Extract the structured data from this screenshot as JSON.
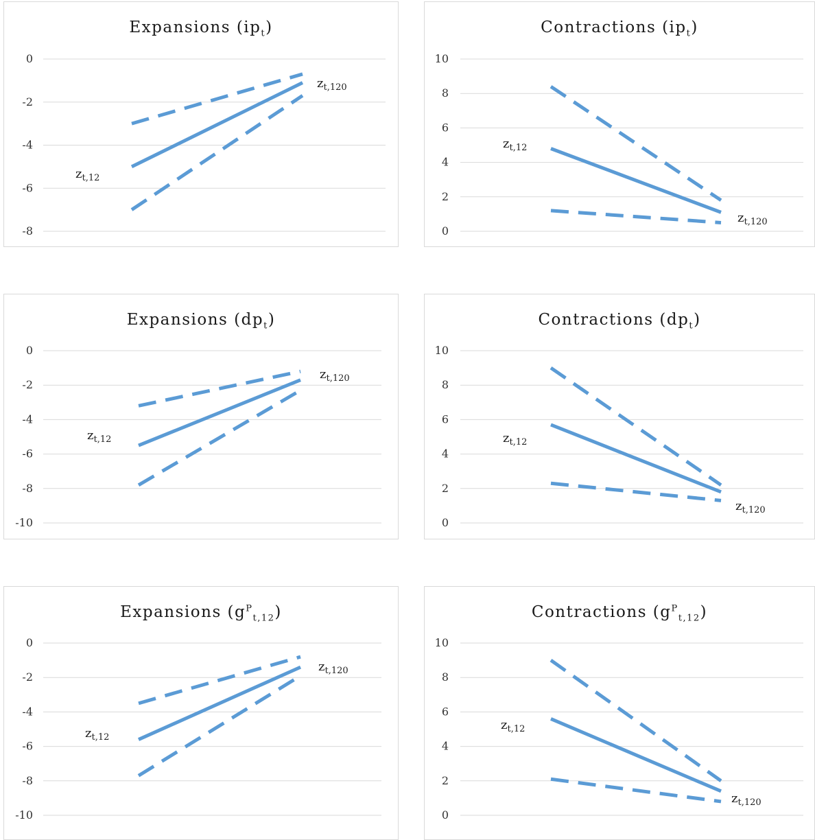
{
  "chart_data": [
    {
      "type": "line",
      "title_main": "Expansions (ip",
      "title_sub": "t",
      "title_sup": "",
      "title_end": ")",
      "ylim": [
        -8,
        0
      ],
      "yticks": [
        "0",
        "-2",
        "-4",
        "-6",
        "-8"
      ],
      "grid": true,
      "x": [
        "z_t,12",
        "z_t,120"
      ],
      "series": [
        {
          "style": "dashed",
          "values": [
            -3.0,
            -0.7
          ]
        },
        {
          "style": "solid",
          "values": [
            -5.0,
            -1.1
          ]
        },
        {
          "style": "dashed",
          "values": [
            -7.0,
            -1.7
          ]
        }
      ],
      "annotations": [
        {
          "text": "z",
          "sub": "t,12"
        },
        {
          "text": "z",
          "sub": "t,120"
        }
      ]
    },
    {
      "type": "line",
      "title_main": "Contractions (ip",
      "title_sub": "t",
      "title_sup": "",
      "title_end": ")",
      "ylim": [
        0,
        10
      ],
      "yticks": [
        "10",
        "8",
        "6",
        "4",
        "2",
        "0"
      ],
      "grid": true,
      "x": [
        "z_t,12",
        "z_t,120"
      ],
      "series": [
        {
          "style": "dashed",
          "values": [
            8.4,
            1.8
          ]
        },
        {
          "style": "solid",
          "values": [
            4.8,
            1.1
          ]
        },
        {
          "style": "dashed",
          "values": [
            1.2,
            0.5
          ]
        }
      ],
      "annotations": [
        {
          "text": "z",
          "sub": "t,12"
        },
        {
          "text": "z",
          "sub": "t,120"
        }
      ]
    },
    {
      "type": "line",
      "title_main": "Expansions (dp",
      "title_sub": "t",
      "title_sup": "",
      "title_end": ")",
      "ylim": [
        -10,
        0
      ],
      "yticks": [
        "0",
        "-2",
        "-4",
        "-6",
        "-8",
        "-10"
      ],
      "grid": true,
      "x": [
        "z_t,12",
        "z_t,120"
      ],
      "series": [
        {
          "style": "dashed",
          "values": [
            -3.2,
            -1.2
          ]
        },
        {
          "style": "solid",
          "values": [
            -5.5,
            -1.7
          ]
        },
        {
          "style": "dashed",
          "values": [
            -7.8,
            -2.3
          ]
        }
      ],
      "annotations": [
        {
          "text": "z",
          "sub": "t,12"
        },
        {
          "text": "z",
          "sub": "t,120"
        }
      ]
    },
    {
      "type": "line",
      "title_main": "Contractions (dp",
      "title_sub": "t",
      "title_sup": "",
      "title_end": ")",
      "ylim": [
        0,
        10
      ],
      "yticks": [
        "10",
        "8",
        "6",
        "4",
        "2",
        "0"
      ],
      "grid": true,
      "x": [
        "z_t,12",
        "z_t,120"
      ],
      "series": [
        {
          "style": "dashed",
          "values": [
            9.0,
            2.2
          ]
        },
        {
          "style": "solid",
          "values": [
            5.7,
            1.8
          ]
        },
        {
          "style": "dashed",
          "values": [
            2.3,
            1.3
          ]
        }
      ],
      "annotations": [
        {
          "text": "z",
          "sub": "t,12"
        },
        {
          "text": "z",
          "sub": "t,120"
        }
      ]
    },
    {
      "type": "line",
      "title_main": "Expansions (g",
      "title_sub": "t,12",
      "title_sup": "P",
      "title_end": ")",
      "ylim": [
        -10,
        0
      ],
      "yticks": [
        "0",
        "-2",
        "-4",
        "-6",
        "-8",
        "-10"
      ],
      "grid": true,
      "x": [
        "z_t,12",
        "z_t,120"
      ],
      "series": [
        {
          "style": "dashed",
          "values": [
            -3.5,
            -0.8
          ]
        },
        {
          "style": "solid",
          "values": [
            -5.6,
            -1.4
          ]
        },
        {
          "style": "dashed",
          "values": [
            -7.7,
            -1.9
          ]
        }
      ],
      "annotations": [
        {
          "text": "z",
          "sub": "t,12"
        },
        {
          "text": "z",
          "sub": "t,120"
        }
      ]
    },
    {
      "type": "line",
      "title_main": "Contractions (g",
      "title_sub": "t,12",
      "title_sup": "P",
      "title_end": ")",
      "ylim": [
        0,
        10
      ],
      "yticks": [
        "10",
        "8",
        "6",
        "4",
        "2",
        "0"
      ],
      "grid": true,
      "x": [
        "z_t,12",
        "z_t,120"
      ],
      "series": [
        {
          "style": "dashed",
          "values": [
            9.0,
            2.0
          ]
        },
        {
          "style": "solid",
          "values": [
            5.6,
            1.4
          ]
        },
        {
          "style": "dashed",
          "values": [
            2.1,
            0.8
          ]
        }
      ],
      "annotations": [
        {
          "text": "z",
          "sub": "t,12"
        },
        {
          "text": "z",
          "sub": "t,120"
        }
      ]
    }
  ],
  "colors": {
    "line": "#5b9bd5",
    "grid": "#d9d9d9",
    "border": "#d9d9d9"
  }
}
